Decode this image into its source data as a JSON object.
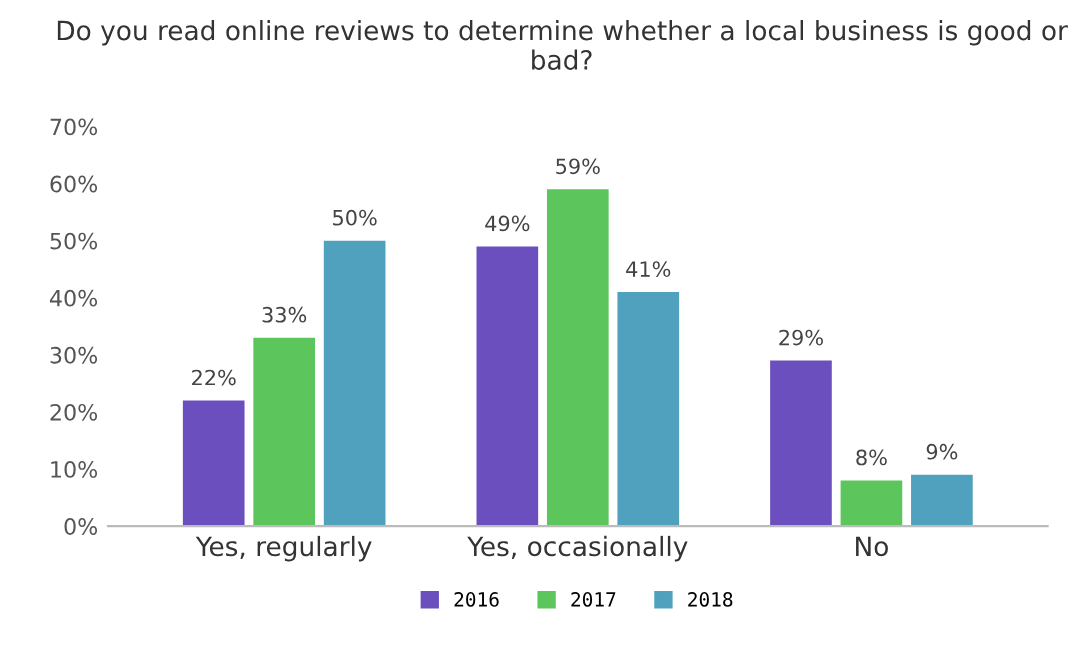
{
  "chart_data": {
    "type": "bar",
    "title": "Do you read online reviews to determine whether a local business is good or bad?",
    "categories": [
      "Yes, regularly",
      "Yes, occasionally",
      "No"
    ],
    "series": [
      {
        "name": "2016",
        "color": "#6b4fbf",
        "values": [
          22,
          49,
          29
        ],
        "value_labels": [
          "22%",
          "49%",
          "29%"
        ]
      },
      {
        "name": "2017",
        "color": "#5cc65c",
        "values": [
          33,
          59,
          8
        ],
        "value_labels": [
          "33%",
          "59%",
          "8%"
        ]
      },
      {
        "name": "2018",
        "color": "#4fa1bd",
        "values": [
          50,
          41,
          9
        ],
        "value_labels": [
          "50%",
          "41%",
          "9%"
        ]
      }
    ],
    "ylim": [
      0,
      70
    ],
    "yticks": [
      {
        "value": 0,
        "label": "0%"
      },
      {
        "value": 10,
        "label": "10%"
      },
      {
        "value": 20,
        "label": "20%"
      },
      {
        "value": 30,
        "label": "30%"
      },
      {
        "value": 40,
        "label": "40%"
      },
      {
        "value": 50,
        "label": "50%"
      },
      {
        "value": 60,
        "label": "60%"
      },
      {
        "value": 70,
        "label": "70%"
      }
    ],
    "grid": false,
    "legend": "bottom"
  }
}
